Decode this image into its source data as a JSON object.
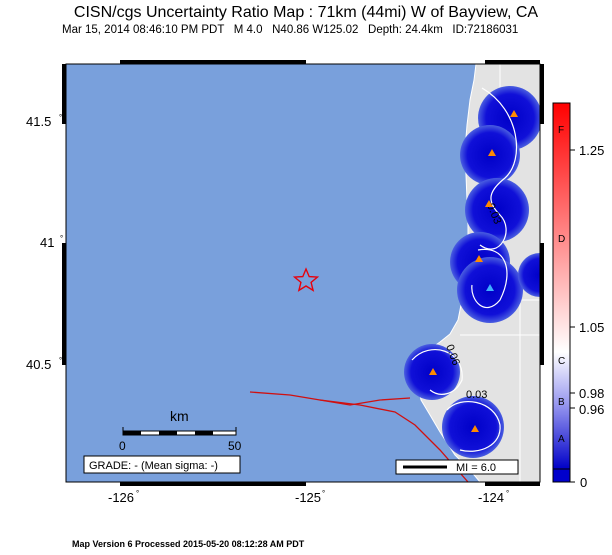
{
  "header": {
    "title": "CISN/cgs Uncertainty Ratio Map : 71km (44mi) W of Bayview, CA",
    "date": "Mar 15, 2014 08:46:10 PM PDT",
    "magnitude": "M 4.0",
    "location": "N40.86 W125.02",
    "depth": "Depth: 24.4km",
    "event_id": "ID:72186031"
  },
  "axes": {
    "lat_ticks": [
      "41.5",
      "41",
      "40.5"
    ],
    "lon_ticks": [
      "-126",
      "-125",
      "-124"
    ]
  },
  "contours": [
    "0.03",
    "0.06",
    "0.03"
  ],
  "scalebar": {
    "label": "km",
    "min": "0",
    "max": "50"
  },
  "grade_box": "GRADE: - (Mean sigma: -)",
  "mi_legend": "MI = 6.0",
  "colorbar": {
    "letters": [
      "F",
      "D",
      "C",
      "B",
      "A"
    ],
    "values": [
      "1.25",
      "1.05",
      "0.98",
      "0.96",
      "0"
    ],
    "colors": {
      "top": "#ff0000",
      "mid": "#ffffff",
      "bottom": "#0000cc"
    }
  },
  "footer": "Map Version 6 Processed 2015-05-20 08:12:28 AM PDT",
  "colors": {
    "ocean": "#79a0dc",
    "land": "#e3e3e3",
    "fault": "#d01010",
    "frame": "#000000"
  }
}
